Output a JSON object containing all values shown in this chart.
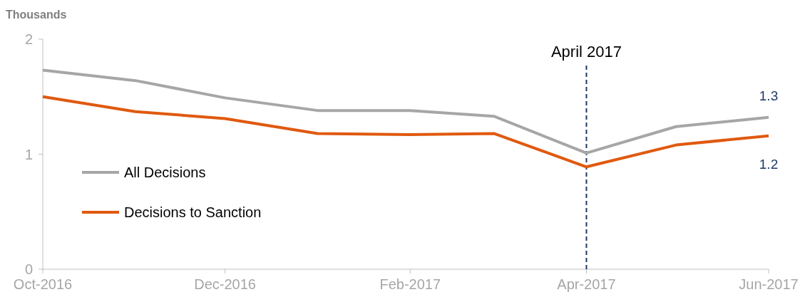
{
  "chart_data": {
    "type": "line",
    "ylabel": "Thousands",
    "x": [
      "2016-10",
      "2016-11",
      "2016-12",
      "2017-01",
      "2017-02",
      "2017-03",
      "2017-04",
      "2017-05",
      "2017-06"
    ],
    "series": [
      {
        "name": "All Decisions",
        "color": "#a6a6a6",
        "values": [
          1.73,
          1.64,
          1.49,
          1.38,
          1.38,
          1.33,
          1.01,
          1.24,
          1.32
        ],
        "value_labels": [
          null,
          null,
          null,
          null,
          null,
          null,
          null,
          null,
          "1.3"
        ]
      },
      {
        "name": "Decisions to Sanction",
        "color": "#e0590f",
        "values": [
          1.5,
          1.37,
          1.31,
          1.18,
          1.17,
          1.18,
          0.89,
          1.08,
          1.16
        ],
        "value_labels": [
          null,
          null,
          null,
          null,
          null,
          null,
          null,
          null,
          "1.2"
        ]
      }
    ],
    "xlim": [
      "2016-10",
      "2017-06"
    ],
    "xticks": [
      {
        "value": "2016-10",
        "label": "Oct-2016"
      },
      {
        "value": "2016-12",
        "label": "Dec-2016"
      },
      {
        "value": "2017-02",
        "label": "Feb-2017"
      },
      {
        "value": "2017-04",
        "label": "Apr-2017"
      },
      {
        "value": "2017-06",
        "label": "Jun-2017"
      }
    ],
    "ylim": [
      0,
      2
    ],
    "yticks": [
      0,
      1,
      2
    ],
    "ref_lines": [
      {
        "axis": "x",
        "value": "2017-04",
        "label": "April 2017",
        "color": "#1f3864",
        "line_style": "dashed"
      }
    ],
    "legend": "left",
    "grid": false,
    "marker": "none",
    "line_style": "solid"
  }
}
